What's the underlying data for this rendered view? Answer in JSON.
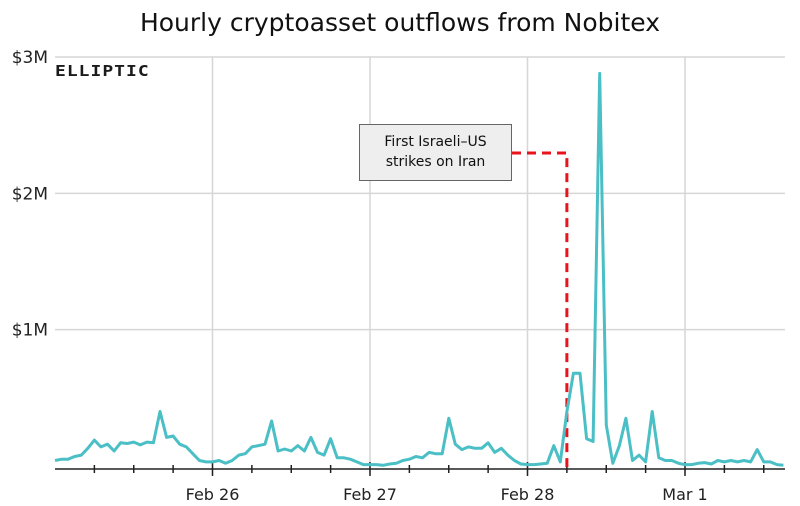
{
  "chart_data": {
    "type": "line",
    "title": "Hourly cryptoasset outflows from Nobitex",
    "xlabel": "",
    "ylabel": "",
    "x_start": "Feb 25 00:00",
    "x_interval": "1 hour",
    "x_ticks": [
      "Feb 26",
      "Feb 27",
      "Feb 28",
      "Mar 1"
    ],
    "y_ticks": [
      "$3M",
      "$2M",
      "$1M"
    ],
    "ylim": [
      0,
      3000000
    ],
    "grid": true,
    "series": [
      {
        "color": "#4bbfc6",
        "values_usd": [
          40000,
          50000,
          50000,
          70000,
          80000,
          130000,
          190000,
          140000,
          160000,
          110000,
          170000,
          165000,
          175000,
          155000,
          175000,
          170000,
          400000,
          210000,
          220000,
          160000,
          140000,
          90000,
          40000,
          30000,
          30000,
          40000,
          20000,
          40000,
          80000,
          90000,
          140000,
          150000,
          160000,
          330000,
          110000,
          125000,
          110000,
          150000,
          110000,
          210000,
          100000,
          80000,
          200000,
          60000,
          60000,
          50000,
          30000,
          10000,
          10000,
          10000,
          5000,
          15000,
          20000,
          40000,
          50000,
          70000,
          60000,
          100000,
          90000,
          90000,
          350000,
          160000,
          120000,
          140000,
          130000,
          130000,
          170000,
          100000,
          130000,
          80000,
          40000,
          15000,
          10000,
          10000,
          15000,
          20000,
          150000,
          30000,
          400000,
          680000,
          680000,
          200000,
          180000,
          2880000,
          300000,
          20000,
          150000,
          350000,
          40000,
          80000,
          30000,
          400000,
          60000,
          40000,
          40000,
          20000,
          10000,
          10000,
          20000,
          25000,
          15000,
          40000,
          30000,
          40000,
          30000,
          40000,
          30000,
          120000,
          30000,
          30000,
          10000,
          5000
        ]
      }
    ],
    "annotation": {
      "lines": [
        "First Israeli–US",
        "strikes on Iran"
      ],
      "at": "Feb 28 06:00",
      "line_color": "#e8141b"
    },
    "logo": "ELLIPTIC"
  }
}
